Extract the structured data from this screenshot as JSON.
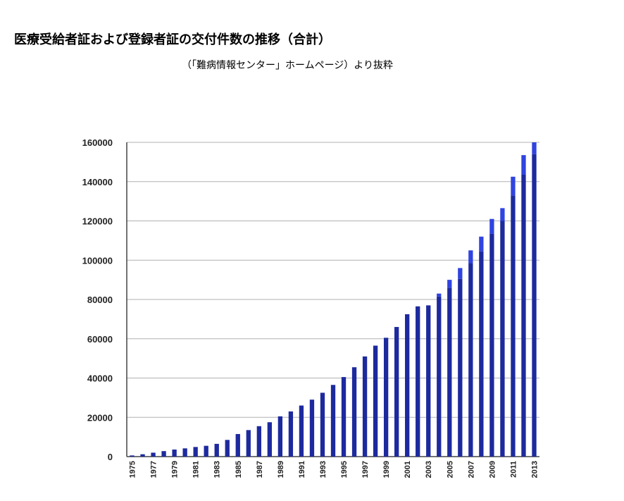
{
  "header": {
    "title": "医療受給者証および登録者証の交付件数の推移（合計）",
    "subtitle": "（「難病情報センター」ホームページ）より抜粋"
  },
  "colors": {
    "bar_main": "#1d2a9e",
    "bar_top": "#2f44e0",
    "grid": "#b0b0b0"
  },
  "chart_data": {
    "type": "bar",
    "stacked": true,
    "categories": [
      "1975",
      "1976",
      "1977",
      "1978",
      "1979",
      "1980",
      "1981",
      "1982",
      "1983",
      "1984",
      "1985",
      "1986",
      "1987",
      "1988",
      "1989",
      "1990",
      "1991",
      "1992",
      "1993",
      "1994",
      "1995",
      "1996",
      "1997",
      "1998",
      "1999",
      "2000",
      "2001",
      "2002",
      "2003",
      "2004",
      "2005",
      "2006",
      "2007",
      "2008",
      "2009",
      "2010",
      "2011",
      "2012",
      "2013"
    ],
    "xtick_labels": [
      "1975",
      "1977",
      "1979",
      "1981",
      "1983",
      "1985",
      "1987",
      "1989",
      "1991",
      "1993",
      "1995",
      "1997",
      "1999",
      "2001",
      "2003",
      "2005",
      "2007",
      "2009",
      "2011",
      "2013"
    ],
    "series": [
      {
        "values": [
          600,
          1200,
          2000,
          2800,
          3600,
          4200,
          4900,
          5500,
          6500,
          8500,
          11500,
          13500,
          15500,
          17500,
          20500,
          23000,
          26000,
          29000,
          32500,
          36500,
          40500,
          45500,
          51000,
          56500,
          60500,
          66000,
          72500,
          76500,
          77000,
          81500,
          86000,
          90500,
          98500,
          104500,
          113500,
          120000,
          133000,
          143500,
          154000
        ]
      },
      {
        "values": [
          0,
          0,
          0,
          0,
          0,
          0,
          0,
          0,
          0,
          0,
          0,
          0,
          0,
          0,
          0,
          0,
          0,
          0,
          0,
          0,
          0,
          0,
          0,
          0,
          0,
          0,
          0,
          0,
          0,
          1500,
          4000,
          5500,
          6500,
          7500,
          7500,
          6500,
          9500,
          10000,
          6000
        ]
      }
    ],
    "yticks": [
      0,
      20000,
      40000,
      60000,
      80000,
      100000,
      120000,
      140000,
      160000
    ],
    "ylim": [
      0,
      160000
    ],
    "grid": true,
    "legend": "none"
  }
}
